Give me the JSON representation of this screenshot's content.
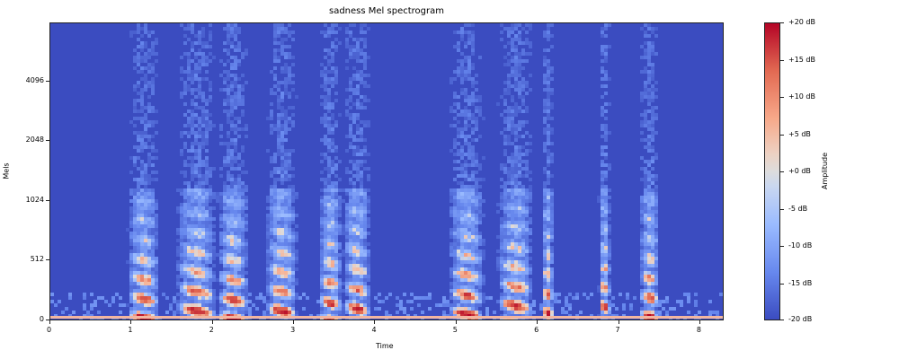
{
  "chart_data": {
    "type": "heatmap",
    "title": "sadness Mel spectrogram",
    "xlabel": "Time",
    "ylabel": "Mels",
    "xlim": [
      0,
      8.3
    ],
    "xticks": [
      "0",
      "1",
      "2",
      "3",
      "4",
      "5",
      "6",
      "7",
      "8"
    ],
    "yticks": [
      "0",
      "512",
      "1024",
      "2048",
      "4096"
    ],
    "colorbar": {
      "label": "Amplitude",
      "range": [
        -20,
        20
      ],
      "ticks": [
        "+20 dB",
        "+15 dB",
        "+10 dB",
        "+5 dB",
        "+0 dB",
        "-5 dB",
        "-10 dB",
        "-15 dB",
        "-20 dB"
      ],
      "colormap": "coolwarm"
    },
    "voiced_segments_seconds": [
      [
        0.95,
        1.35
      ],
      [
        1.55,
        2.05
      ],
      [
        2.05,
        2.45
      ],
      [
        2.65,
        3.05
      ],
      [
        3.3,
        3.6
      ],
      [
        3.6,
        3.95
      ],
      [
        4.9,
        5.35
      ],
      [
        5.5,
        5.95
      ],
      [
        6.05,
        6.2
      ],
      [
        6.75,
        6.9
      ],
      [
        7.25,
        7.5
      ]
    ],
    "colors": {
      "low": "#3b4cc0",
      "mid": "#dddcdc",
      "high": "#b40426"
    }
  }
}
